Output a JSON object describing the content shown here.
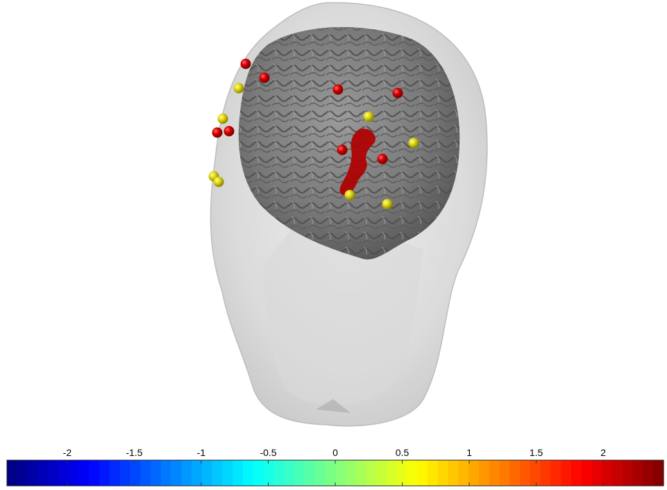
{
  "scene": {
    "head_color": "#c9c9c9",
    "cortex_color": "#808080",
    "activation_color": "#b30000",
    "electrode_positive_color": "#d40000",
    "electrode_neutral_color": "#e0da10"
  },
  "colorbar": {
    "min": -2.45,
    "max": 2.45,
    "ticks": [
      {
        "value": -2,
        "label": "-2"
      },
      {
        "value": -1.5,
        "label": "-1.5"
      },
      {
        "value": -1,
        "label": "-1"
      },
      {
        "value": -0.5,
        "label": "-0.5"
      },
      {
        "value": 0,
        "label": "0"
      },
      {
        "value": 0.5,
        "label": "0.5"
      },
      {
        "value": 1,
        "label": "1"
      },
      {
        "value": 1.5,
        "label": "1.5"
      },
      {
        "value": 2,
        "label": "2"
      }
    ],
    "colormap": "jet"
  }
}
